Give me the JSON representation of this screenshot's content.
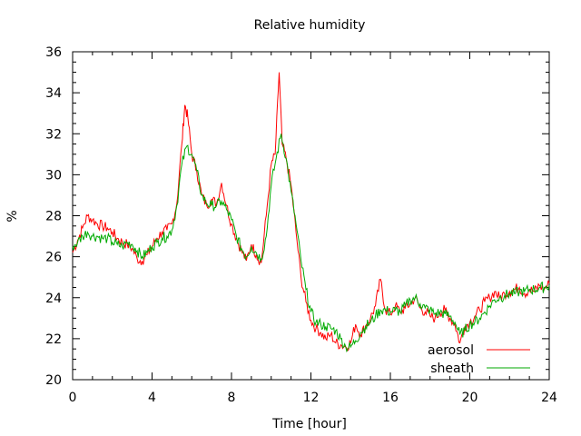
{
  "chart_data": {
    "type": "line",
    "title": "Relative humidity",
    "xlabel": "Time [hour]",
    "ylabel": "%",
    "xlim": [
      0,
      24
    ],
    "ylim": [
      20,
      36
    ],
    "xticks": [
      0,
      4,
      8,
      12,
      16,
      20,
      24
    ],
    "yticks": [
      20,
      22,
      24,
      26,
      28,
      30,
      32,
      34,
      36
    ],
    "grid": false,
    "legend_position": "bottom-right",
    "series": [
      {
        "name": "aerosol",
        "color": "#ff0000",
        "points": [
          [
            0,
            26.2
          ],
          [
            0.25,
            26.8
          ],
          [
            0.5,
            27.4
          ],
          [
            0.75,
            28.0
          ],
          [
            1.0,
            27.8
          ],
          [
            1.25,
            27.6
          ],
          [
            1.5,
            27.5
          ],
          [
            1.75,
            27.4
          ],
          [
            2.0,
            27.2
          ],
          [
            2.25,
            26.9
          ],
          [
            2.5,
            26.7
          ],
          [
            2.75,
            26.6
          ],
          [
            3.0,
            26.4
          ],
          [
            3.25,
            25.9
          ],
          [
            3.5,
            25.8
          ],
          [
            3.75,
            26.1
          ],
          [
            4.0,
            26.5
          ],
          [
            4.25,
            26.9
          ],
          [
            4.5,
            27.2
          ],
          [
            4.75,
            27.3
          ],
          [
            5.0,
            27.6
          ],
          [
            5.25,
            28.6
          ],
          [
            5.5,
            31.5
          ],
          [
            5.65,
            33.4
          ],
          [
            5.8,
            32.8
          ],
          [
            6.0,
            31.0
          ],
          [
            6.25,
            30.2
          ],
          [
            6.5,
            29.0
          ],
          [
            6.75,
            28.5
          ],
          [
            7.0,
            28.8
          ],
          [
            7.25,
            28.6
          ],
          [
            7.5,
            29.6
          ],
          [
            7.75,
            28.5
          ],
          [
            8.0,
            27.6
          ],
          [
            8.25,
            26.9
          ],
          [
            8.5,
            26.3
          ],
          [
            8.75,
            25.8
          ],
          [
            9.0,
            26.6
          ],
          [
            9.25,
            26.1
          ],
          [
            9.5,
            25.7
          ],
          [
            9.75,
            28.0
          ],
          [
            10.0,
            30.5
          ],
          [
            10.2,
            31.0
          ],
          [
            10.4,
            35.0
          ],
          [
            10.55,
            31.5
          ],
          [
            10.75,
            30.8
          ],
          [
            11.0,
            29.5
          ],
          [
            11.25,
            27.2
          ],
          [
            11.5,
            25.0
          ],
          [
            11.75,
            23.8
          ],
          [
            12.0,
            22.9
          ],
          [
            12.25,
            22.5
          ],
          [
            12.5,
            22.3
          ],
          [
            12.75,
            22.0
          ],
          [
            13.0,
            22.2
          ],
          [
            13.25,
            21.8
          ],
          [
            13.5,
            21.7
          ],
          [
            13.75,
            21.6
          ],
          [
            14.0,
            21.8
          ],
          [
            14.25,
            22.7
          ],
          [
            14.5,
            22.2
          ],
          [
            14.75,
            22.6
          ],
          [
            15.0,
            23.0
          ],
          [
            15.25,
            23.6
          ],
          [
            15.5,
            24.9
          ],
          [
            15.75,
            23.4
          ],
          [
            16.0,
            23.2
          ],
          [
            16.25,
            23.6
          ],
          [
            16.5,
            23.3
          ],
          [
            16.75,
            23.5
          ],
          [
            17.0,
            23.7
          ],
          [
            17.25,
            24.0
          ],
          [
            17.5,
            23.5
          ],
          [
            17.75,
            23.3
          ],
          [
            18.0,
            23.1
          ],
          [
            18.25,
            23.0
          ],
          [
            18.5,
            23.3
          ],
          [
            18.75,
            23.4
          ],
          [
            19.0,
            23.0
          ],
          [
            19.25,
            22.7
          ],
          [
            19.5,
            21.8
          ],
          [
            19.75,
            22.6
          ],
          [
            20.0,
            22.8
          ],
          [
            20.25,
            23.1
          ],
          [
            20.5,
            23.4
          ],
          [
            20.75,
            23.8
          ],
          [
            21.0,
            24.0
          ],
          [
            21.25,
            24.3
          ],
          [
            21.5,
            24.0
          ],
          [
            21.75,
            24.2
          ],
          [
            22.0,
            24.3
          ],
          [
            22.25,
            24.4
          ],
          [
            22.5,
            24.5
          ],
          [
            22.75,
            24.2
          ],
          [
            23.0,
            24.4
          ],
          [
            23.25,
            24.3
          ],
          [
            23.5,
            24.6
          ],
          [
            23.75,
            24.4
          ],
          [
            24.0,
            24.7
          ]
        ]
      },
      {
        "name": "sheath",
        "color": "#00aa00",
        "points": [
          [
            0,
            26.5
          ],
          [
            0.25,
            26.7
          ],
          [
            0.5,
            27.0
          ],
          [
            0.75,
            27.2
          ],
          [
            1.0,
            27.0
          ],
          [
            1.25,
            27.0
          ],
          [
            1.5,
            26.9
          ],
          [
            1.75,
            26.9
          ],
          [
            2.0,
            26.7
          ],
          [
            2.25,
            26.6
          ],
          [
            2.5,
            26.5
          ],
          [
            2.75,
            26.7
          ],
          [
            3.0,
            26.6
          ],
          [
            3.25,
            26.3
          ],
          [
            3.5,
            26.0
          ],
          [
            3.75,
            26.2
          ],
          [
            4.0,
            26.5
          ],
          [
            4.25,
            26.7
          ],
          [
            4.5,
            26.9
          ],
          [
            4.75,
            27.0
          ],
          [
            5.0,
            27.3
          ],
          [
            5.25,
            28.5
          ],
          [
            5.5,
            30.5
          ],
          [
            5.75,
            31.4
          ],
          [
            6.0,
            31.0
          ],
          [
            6.25,
            30.2
          ],
          [
            6.5,
            29.0
          ],
          [
            6.75,
            28.6
          ],
          [
            7.0,
            28.5
          ],
          [
            7.25,
            28.5
          ],
          [
            7.5,
            28.7
          ],
          [
            7.75,
            28.3
          ],
          [
            8.0,
            27.8
          ],
          [
            8.25,
            27.0
          ],
          [
            8.5,
            26.4
          ],
          [
            8.75,
            26.0
          ],
          [
            9.0,
            26.5
          ],
          [
            9.25,
            26.2
          ],
          [
            9.5,
            25.9
          ],
          [
            9.75,
            27.0
          ],
          [
            10.0,
            29.5
          ],
          [
            10.25,
            30.8
          ],
          [
            10.5,
            32.0
          ],
          [
            10.75,
            30.8
          ],
          [
            11.0,
            29.2
          ],
          [
            11.25,
            27.6
          ],
          [
            11.5,
            25.8
          ],
          [
            11.75,
            24.4
          ],
          [
            12.0,
            23.3
          ],
          [
            12.25,
            22.8
          ],
          [
            12.5,
            22.7
          ],
          [
            12.75,
            22.6
          ],
          [
            13.0,
            22.5
          ],
          [
            13.25,
            22.4
          ],
          [
            13.5,
            22.0
          ],
          [
            13.75,
            21.6
          ],
          [
            14.0,
            21.6
          ],
          [
            14.25,
            21.9
          ],
          [
            14.5,
            22.3
          ],
          [
            14.75,
            22.6
          ],
          [
            15.0,
            22.8
          ],
          [
            15.25,
            23.1
          ],
          [
            15.5,
            23.4
          ],
          [
            15.75,
            23.4
          ],
          [
            16.0,
            23.3
          ],
          [
            16.25,
            23.4
          ],
          [
            16.5,
            23.3
          ],
          [
            16.75,
            23.6
          ],
          [
            17.0,
            23.9
          ],
          [
            17.25,
            24.0
          ],
          [
            17.5,
            23.7
          ],
          [
            17.75,
            23.5
          ],
          [
            18.0,
            23.4
          ],
          [
            18.25,
            23.2
          ],
          [
            18.5,
            23.3
          ],
          [
            18.75,
            23.2
          ],
          [
            19.0,
            23.1
          ],
          [
            19.25,
            22.8
          ],
          [
            19.5,
            22.2
          ],
          [
            19.75,
            22.4
          ],
          [
            20.0,
            22.7
          ],
          [
            20.25,
            22.8
          ],
          [
            20.5,
            23.0
          ],
          [
            20.75,
            23.3
          ],
          [
            21.0,
            23.6
          ],
          [
            21.25,
            23.9
          ],
          [
            21.5,
            24.0
          ],
          [
            21.75,
            24.1
          ],
          [
            22.0,
            24.2
          ],
          [
            22.25,
            24.2
          ],
          [
            22.5,
            24.3
          ],
          [
            22.75,
            24.3
          ],
          [
            23.0,
            24.4
          ],
          [
            23.25,
            24.4
          ],
          [
            23.5,
            24.5
          ],
          [
            23.75,
            24.5
          ],
          [
            24.0,
            24.6
          ]
        ]
      }
    ]
  }
}
